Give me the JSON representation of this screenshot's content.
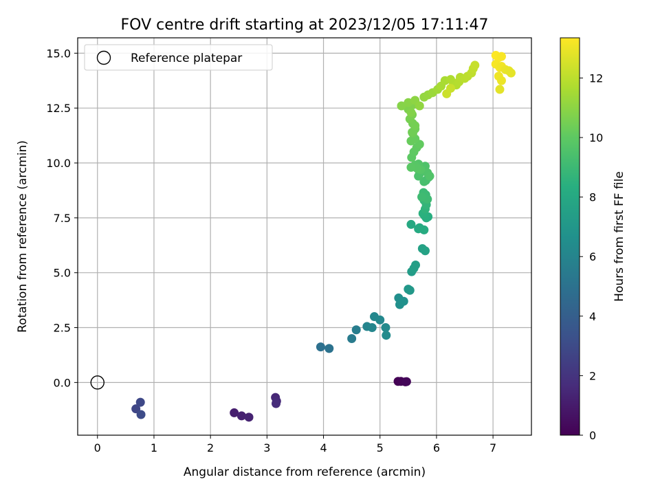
{
  "chart_data": {
    "type": "scatter",
    "title": "FOV centre drift starting at 2023/12/05 17:11:47",
    "xlabel": "Angular distance from reference (arcmin)",
    "ylabel": "Rotation from reference (arcmin)",
    "xlim": [
      -0.35,
      7.68
    ],
    "ylim": [
      -2.4,
      15.7
    ],
    "xticks": [
      0,
      1,
      2,
      3,
      4,
      5,
      6,
      7
    ],
    "yticks": [
      0.0,
      2.5,
      5.0,
      7.5,
      10.0,
      12.5,
      15.0
    ],
    "xtick_labels": [
      "0",
      "1",
      "2",
      "3",
      "4",
      "5",
      "6",
      "7"
    ],
    "ytick_labels": [
      "0.0",
      "2.5",
      "5.0",
      "7.5",
      "10.0",
      "12.5",
      "15.0"
    ],
    "grid": true,
    "colormap": "viridis",
    "legend": {
      "position": "top-left",
      "entries": [
        "Reference platepar"
      ]
    },
    "reference_point": {
      "x": 0,
      "y": 0
    },
    "colorbar": {
      "label": "Hours from first FF file",
      "range": [
        0,
        13.35
      ],
      "ticks": [
        0,
        2,
        4,
        6,
        8,
        10,
        12
      ],
      "tick_labels": [
        "0",
        "2",
        "4",
        "6",
        "8",
        "10",
        "12"
      ]
    },
    "series": [
      {
        "x": [
          5.32,
          5.37,
          5.45,
          5.47,
          2.42,
          2.55,
          2.68,
          3.15,
          3.17,
          3.16,
          0.68,
          0.76,
          0.77,
          3.95,
          4.1,
          4.5,
          4.58,
          4.77,
          4.86,
          4.9,
          5.0,
          5.1,
          5.11,
          5.33,
          5.35,
          5.42,
          5.5,
          5.53,
          5.56,
          5.6,
          5.63,
          5.75,
          5.8,
          5.55,
          5.68,
          5.7,
          5.78,
          5.82,
          5.85,
          5.79,
          5.76,
          5.8,
          5.82,
          5.78,
          5.79,
          5.81,
          5.77,
          5.84,
          5.74,
          5.81,
          5.86,
          5.78,
          5.68,
          5.7,
          5.8,
          5.84,
          5.88,
          5.68,
          5.72,
          5.62,
          5.66,
          5.55,
          5.56,
          5.6,
          5.65,
          5.7,
          5.62,
          5.55,
          5.58,
          5.62,
          5.57,
          5.58,
          5.62,
          5.53,
          5.57,
          5.5,
          5.52,
          5.58,
          5.55,
          5.38,
          5.5,
          5.62,
          5.7,
          5.78,
          5.85,
          5.93,
          6.02,
          6.08,
          6.15,
          6.25,
          6.3,
          6.35,
          6.4,
          6.42,
          6.5,
          6.55,
          6.62,
          6.65,
          6.68,
          6.25,
          6.18,
          7.05,
          7.1,
          7.15,
          7.05,
          7.12,
          7.15,
          7.1,
          7.15,
          7.22,
          7.28,
          7.32,
          7.12
        ],
        "y": [
          0.05,
          0.05,
          0.03,
          0.04,
          -1.38,
          -1.52,
          -1.58,
          -0.68,
          -0.85,
          -0.96,
          -1.2,
          -0.9,
          -1.46,
          1.62,
          1.55,
          2.0,
          2.4,
          2.55,
          2.5,
          3.0,
          2.85,
          2.5,
          2.15,
          3.85,
          3.55,
          3.7,
          4.25,
          4.2,
          5.05,
          5.2,
          5.35,
          6.1,
          6.0,
          7.2,
          7.0,
          7.05,
          6.95,
          7.5,
          7.55,
          7.6,
          7.7,
          7.9,
          8.1,
          8.3,
          8.5,
          8.55,
          8.65,
          8.35,
          8.45,
          9.2,
          9.35,
          9.15,
          9.4,
          9.5,
          9.85,
          9.55,
          9.4,
          9.95,
          9.7,
          9.9,
          9.75,
          9.8,
          10.25,
          10.5,
          10.7,
          10.85,
          11.1,
          11.0,
          11.35,
          11.55,
          11.4,
          11.8,
          11.7,
          12.0,
          12.2,
          12.45,
          12.55,
          12.65,
          12.3,
          12.6,
          12.75,
          12.85,
          12.6,
          13.0,
          13.1,
          13.2,
          13.35,
          13.5,
          13.75,
          13.8,
          13.65,
          13.55,
          13.7,
          13.9,
          13.85,
          13.95,
          14.1,
          14.3,
          14.45,
          13.4,
          13.15,
          14.9,
          14.8,
          14.85,
          14.5,
          14.35,
          14.4,
          13.95,
          13.75,
          14.25,
          14.2,
          14.1,
          13.35
        ],
        "hours": [
          0.0,
          0.1,
          0.15,
          0.2,
          1.1,
          1.2,
          1.3,
          1.45,
          1.55,
          1.65,
          2.8,
          2.9,
          3.0,
          4.9,
          5.0,
          5.5,
          5.6,
          6.0,
          6.1,
          6.15,
          6.2,
          6.3,
          6.35,
          6.55,
          6.6,
          6.65,
          7.0,
          7.05,
          7.3,
          7.4,
          7.45,
          7.6,
          7.65,
          8.0,
          8.05,
          8.1,
          8.15,
          8.3,
          8.35,
          8.4,
          8.45,
          8.6,
          8.7,
          8.8,
          8.9,
          8.95,
          9.0,
          9.05,
          9.1,
          9.25,
          9.3,
          9.35,
          9.45,
          9.5,
          9.55,
          9.6,
          9.65,
          9.7,
          9.75,
          9.8,
          9.85,
          9.9,
          9.95,
          10.0,
          10.05,
          10.1,
          10.15,
          10.2,
          10.3,
          10.35,
          10.4,
          10.45,
          10.5,
          10.55,
          10.6,
          10.65,
          10.7,
          10.75,
          10.8,
          10.85,
          10.9,
          11.0,
          11.1,
          11.15,
          11.2,
          11.3,
          11.4,
          11.55,
          11.6,
          11.7,
          11.75,
          11.8,
          11.85,
          11.9,
          11.95,
          12.0,
          12.05,
          12.1,
          12.2,
          12.25,
          12.3,
          13.35,
          13.3,
          13.25,
          13.2,
          13.15,
          13.1,
          13.05,
          13.0,
          12.95,
          12.9,
          12.85,
          12.8
        ]
      }
    ]
  }
}
